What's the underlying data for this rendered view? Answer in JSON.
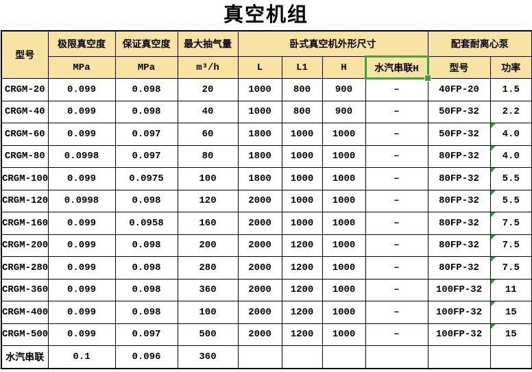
{
  "title": "真空机组",
  "colors": {
    "header_bg": "#F8E3A3",
    "selection_green": "#3FA23F",
    "error_flag_green": "#2E9E2E",
    "grid": "#000000"
  },
  "header": {
    "model": "型号",
    "ultimate": "极限真空度",
    "guaranteed": "保证真空度",
    "capacity": "最大抽气量",
    "dimensions_group": "卧式真空机外形尺寸",
    "pump_group": "配套耐离心泵",
    "mpa_1": "MPa",
    "mpa_2": "MPa",
    "unit_m3h": "m³/h",
    "dim_l": "L",
    "dim_l1": "L1",
    "dim_h": "H",
    "steam_series": "水汽串联H",
    "pump_model": "型号",
    "power": "功率"
  },
  "table": {
    "rows": [
      {
        "model": "CRGM-20",
        "ultimate": "0.099",
        "guaranteed": "0.098",
        "capacity": "20",
        "L": "1000",
        "L1": "800",
        "H": "900",
        "steam": "–",
        "pump_model": "40FP-20",
        "power": "1.5",
        "error_flag": false
      },
      {
        "model": "CRGM-40",
        "ultimate": "0.099",
        "guaranteed": "0.098",
        "capacity": "40",
        "L": "1000",
        "L1": "800",
        "H": "900",
        "steam": "–",
        "pump_model": "50FP-32",
        "power": "2.2",
        "error_flag": false
      },
      {
        "model": "CRGM-60",
        "ultimate": "0.099",
        "guaranteed": "0.097",
        "capacity": "60",
        "L": "1800",
        "L1": "1000",
        "H": "1000",
        "steam": "–",
        "pump_model": "50FP-32",
        "power": "4.0",
        "error_flag": true
      },
      {
        "model": "CRGM-80",
        "ultimate": "0.0998",
        "guaranteed": "0.097",
        "capacity": "80",
        "L": "1800",
        "L1": "1000",
        "H": "1000",
        "steam": "–",
        "pump_model": "80FP-32",
        "power": "4.0",
        "error_flag": true
      },
      {
        "model": "CRGM-100",
        "ultimate": "0.099",
        "guaranteed": "0.0975",
        "capacity": "100",
        "L": "1800",
        "L1": "1000",
        "H": "1000",
        "steam": "–",
        "pump_model": "80FP-32",
        "power": "5.5",
        "error_flag": true
      },
      {
        "model": "CRGM-120",
        "ultimate": "0.0998",
        "guaranteed": "0.098",
        "capacity": "120",
        "L": "2000",
        "L1": "1000",
        "H": "1000",
        "steam": "–",
        "pump_model": "80FP-32",
        "power": "5.5",
        "error_flag": true
      },
      {
        "model": "CRGM-160",
        "ultimate": "0.099",
        "guaranteed": "0.0958",
        "capacity": "160",
        "L": "2000",
        "L1": "1000",
        "H": "1000",
        "steam": "–",
        "pump_model": "80FP-32",
        "power": "7.5",
        "error_flag": true
      },
      {
        "model": "CRGM-200",
        "ultimate": "0.099",
        "guaranteed": "0.098",
        "capacity": "200",
        "L": "2000",
        "L1": "1200",
        "H": "1000",
        "steam": "–",
        "pump_model": "80FP-32",
        "power": "7.5",
        "error_flag": true
      },
      {
        "model": "CRGM-280",
        "ultimate": "0.099",
        "guaranteed": "0.098",
        "capacity": "280",
        "L": "2000",
        "L1": "1200",
        "H": "1000",
        "steam": "–",
        "pump_model": "80FP-32",
        "power": "7.5",
        "error_flag": true
      },
      {
        "model": "CRGM-360",
        "ultimate": "0.099",
        "guaranteed": "0.098",
        "capacity": "360",
        "L": "2000",
        "L1": "1200",
        "H": "1000",
        "steam": "–",
        "pump_model": "100FP-32",
        "power": "11",
        "error_flag": true
      },
      {
        "model": "CRGM-400",
        "ultimate": "0.099",
        "guaranteed": "0.098",
        "capacity": "100",
        "L": "2000",
        "L1": "1200",
        "H": "1000",
        "steam": "–",
        "pump_model": "100FP-32",
        "power": "15",
        "error_flag": true
      },
      {
        "model": "CRGM-500",
        "ultimate": "0.099",
        "guaranteed": "0.097",
        "capacity": "500",
        "L": "2000",
        "L1": "1200",
        "H": "1000",
        "steam": "–",
        "pump_model": "100FP-32",
        "power": "15",
        "error_flag": true
      },
      {
        "model": "水汽串联",
        "ultimate": "0.1",
        "guaranteed": "0.096",
        "capacity": "360",
        "L": "",
        "L1": "",
        "H": "",
        "steam": "",
        "pump_model": "",
        "power": "",
        "error_flag": false
      }
    ]
  }
}
